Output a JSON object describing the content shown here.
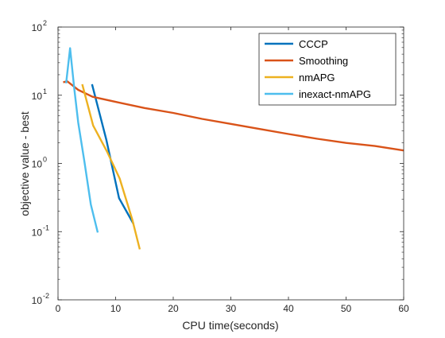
{
  "chart_data": {
    "type": "line",
    "xlabel": "CPU time(seconds)",
    "ylabel": "objective value - best",
    "xlim": [
      0,
      60
    ],
    "ylim": [
      0.01,
      100
    ],
    "yscale": "log",
    "grid": false,
    "legend_position": "top-right",
    "x_ticks": [
      0,
      10,
      20,
      30,
      40,
      50,
      60
    ],
    "x_tick_labels": [
      "0",
      "10",
      "20",
      "30",
      "40",
      "50",
      "60"
    ],
    "y_ticks": [
      0.01,
      0.1,
      1,
      10,
      100
    ],
    "y_tick_labels": [
      {
        "base": "10",
        "exp": "-2"
      },
      {
        "base": "10",
        "exp": "-1"
      },
      {
        "base": "10",
        "exp": "0"
      },
      {
        "base": "10",
        "exp": "1"
      },
      {
        "base": "10",
        "exp": "2"
      }
    ],
    "series": [
      {
        "name": "CCCP",
        "color": "#0072BD",
        "x": [
          5.9,
          8.4,
          10.6,
          13.1
        ],
        "y": [
          14.5,
          2.2,
          0.31,
          0.13
        ]
      },
      {
        "name": "Smoothing",
        "color": "#D95319",
        "x": [
          0.9,
          1.6,
          3.5,
          6,
          10,
          15,
          20,
          25,
          30,
          35,
          40,
          45,
          50,
          55,
          60
        ],
        "y": [
          15.5,
          16,
          12,
          9.5,
          8,
          6.5,
          5.5,
          4.5,
          3.8,
          3.2,
          2.7,
          2.3,
          2.0,
          1.8,
          1.55
        ]
      },
      {
        "name": "nmAPG",
        "color": "#EDB120",
        "x": [
          4.2,
          6.1,
          8.5,
          10.7,
          12.9,
          14.2
        ],
        "y": [
          14.5,
          3.6,
          1.5,
          0.6,
          0.15,
          0.055
        ]
      },
      {
        "name": "inexact-nmAPG",
        "color": "#4DBEEE",
        "x": [
          1.4,
          2.1,
          2.8,
          3.5,
          4.6,
          5.7,
          6.9
        ],
        "y": [
          15,
          49,
          13,
          4,
          1.05,
          0.25,
          0.097
        ]
      }
    ]
  }
}
